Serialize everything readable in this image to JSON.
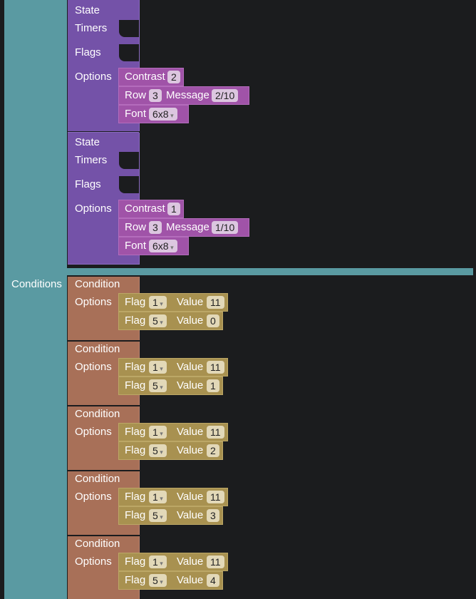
{
  "states": [
    {
      "labels": {
        "state": "State",
        "timers": "Timers",
        "flags": "Flags",
        "options": "Options"
      },
      "contrast": {
        "label": "Contrast",
        "value": "2"
      },
      "row": {
        "label": "Row",
        "value": "3"
      },
      "message": {
        "label": "Message",
        "value": "2/10"
      },
      "font": {
        "label": "Font",
        "value": "6x8"
      }
    },
    {
      "labels": {
        "state": "State",
        "timers": "Timers",
        "flags": "Flags",
        "options": "Options"
      },
      "contrast": {
        "label": "Contrast",
        "value": "1"
      },
      "row": {
        "label": "Row",
        "value": "3"
      },
      "message": {
        "label": "Message",
        "value": "1/10"
      },
      "font": {
        "label": "Font",
        "value": "6x8"
      }
    }
  ],
  "conditions_section": {
    "label": "Conditions"
  },
  "conditions": [
    {
      "title": "Condition",
      "options": "Options",
      "flags": [
        {
          "flag_label": "Flag",
          "flag": "1",
          "value_label": "Value",
          "value": "11"
        },
        {
          "flag_label": "Flag",
          "flag": "5",
          "value_label": "Value",
          "value": "0"
        }
      ]
    },
    {
      "title": "Condition",
      "options": "Options",
      "flags": [
        {
          "flag_label": "Flag",
          "flag": "1",
          "value_label": "Value",
          "value": "11"
        },
        {
          "flag_label": "Flag",
          "flag": "5",
          "value_label": "Value",
          "value": "1"
        }
      ]
    },
    {
      "title": "Condition",
      "options": "Options",
      "flags": [
        {
          "flag_label": "Flag",
          "flag": "1",
          "value_label": "Value",
          "value": "11"
        },
        {
          "flag_label": "Flag",
          "flag": "5",
          "value_label": "Value",
          "value": "2"
        }
      ]
    },
    {
      "title": "Condition",
      "options": "Options",
      "flags": [
        {
          "flag_label": "Flag",
          "flag": "1",
          "value_label": "Value",
          "value": "11"
        },
        {
          "flag_label": "Flag",
          "flag": "5",
          "value_label": "Value",
          "value": "3"
        }
      ]
    },
    {
      "title": "Condition",
      "options": "Options",
      "flags": [
        {
          "flag_label": "Flag",
          "flag": "1",
          "value_label": "Value",
          "value": "11"
        },
        {
          "flag_label": "Flag",
          "flag": "5",
          "value_label": "Value",
          "value": "4"
        }
      ]
    }
  ],
  "colors": {
    "teal": "#5a9aa2",
    "purple": "#7452a8",
    "pink": "#a053a8",
    "brown": "#a87058",
    "gold": "#a89150",
    "workspace": "#1b1c1e"
  }
}
